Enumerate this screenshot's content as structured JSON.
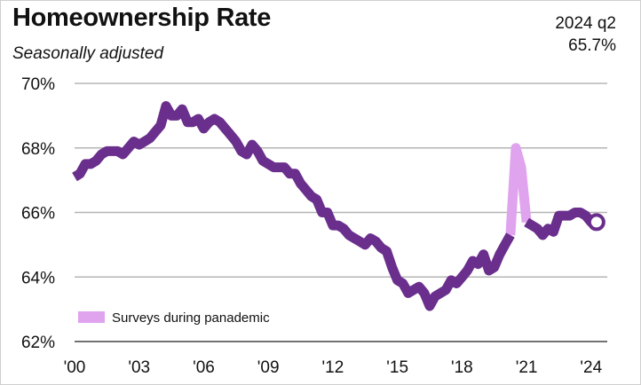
{
  "header": {
    "title": "Homeownership Rate",
    "subtitle": "Seasonally adjusted",
    "latest_period": "2024 q2",
    "latest_value": "65.7%"
  },
  "colors": {
    "main_series": "#6a2e8c",
    "pandemic_series": "#e0a3ee",
    "grid": "#b5b5b5"
  },
  "chart_data": {
    "type": "line",
    "title": "Homeownership Rate",
    "subtitle": "Seasonally adjusted",
    "xlabel": "",
    "ylabel": "",
    "xlim": [
      2000.0,
      2024.75
    ],
    "ylim": [
      62,
      70
    ],
    "x_ticks": [
      {
        "value": 2000,
        "label": "'00"
      },
      {
        "value": 2003,
        "label": "'03"
      },
      {
        "value": 2006,
        "label": "'06"
      },
      {
        "value": 2009,
        "label": "'09"
      },
      {
        "value": 2012,
        "label": "'12"
      },
      {
        "value": 2015,
        "label": "'15"
      },
      {
        "value": 2018,
        "label": "'18"
      },
      {
        "value": 2021,
        "label": "'21"
      },
      {
        "value": 2024,
        "label": "'24"
      }
    ],
    "y_ticks": [
      {
        "value": 70,
        "label": "70%"
      },
      {
        "value": 68,
        "label": "68%"
      },
      {
        "value": 66,
        "label": "66%"
      },
      {
        "value": 64,
        "label": "64%"
      },
      {
        "value": 62,
        "label": "62%"
      }
    ],
    "grid": true,
    "legend": {
      "position": "bottom-left",
      "label": "Surveys during panademic"
    },
    "series": [
      {
        "name": "Homeownership rate",
        "role": "main-before",
        "points": [
          [
            2000.0,
            67.1
          ],
          [
            2000.25,
            67.2
          ],
          [
            2000.5,
            67.5
          ],
          [
            2000.75,
            67.5
          ],
          [
            2001.0,
            67.6
          ],
          [
            2001.25,
            67.8
          ],
          [
            2001.5,
            67.9
          ],
          [
            2001.75,
            67.9
          ],
          [
            2002.0,
            67.9
          ],
          [
            2002.25,
            67.8
          ],
          [
            2002.5,
            68.0
          ],
          [
            2002.75,
            68.2
          ],
          [
            2003.0,
            68.1
          ],
          [
            2003.25,
            68.2
          ],
          [
            2003.5,
            68.3
          ],
          [
            2003.75,
            68.5
          ],
          [
            2004.0,
            68.7
          ],
          [
            2004.25,
            69.3
          ],
          [
            2004.5,
            69.0
          ],
          [
            2004.75,
            69.0
          ],
          [
            2005.0,
            69.2
          ],
          [
            2005.25,
            68.8
          ],
          [
            2005.5,
            68.8
          ],
          [
            2005.75,
            68.9
          ],
          [
            2006.0,
            68.6
          ],
          [
            2006.25,
            68.8
          ],
          [
            2006.5,
            68.9
          ],
          [
            2006.75,
            68.8
          ],
          [
            2007.0,
            68.6
          ],
          [
            2007.25,
            68.4
          ],
          [
            2007.5,
            68.2
          ],
          [
            2007.75,
            67.9
          ],
          [
            2008.0,
            67.8
          ],
          [
            2008.25,
            68.1
          ],
          [
            2008.5,
            67.9
          ],
          [
            2008.75,
            67.6
          ],
          [
            2009.0,
            67.5
          ],
          [
            2009.25,
            67.4
          ],
          [
            2009.5,
            67.4
          ],
          [
            2009.75,
            67.4
          ],
          [
            2010.0,
            67.2
          ],
          [
            2010.25,
            67.2
          ],
          [
            2010.5,
            66.9
          ],
          [
            2010.75,
            66.7
          ],
          [
            2011.0,
            66.5
          ],
          [
            2011.25,
            66.4
          ],
          [
            2011.5,
            66.0
          ],
          [
            2011.75,
            66.0
          ],
          [
            2012.0,
            65.6
          ],
          [
            2012.25,
            65.6
          ],
          [
            2012.5,
            65.5
          ],
          [
            2012.75,
            65.3
          ],
          [
            2013.0,
            65.2
          ],
          [
            2013.25,
            65.1
          ],
          [
            2013.5,
            65.0
          ],
          [
            2013.75,
            65.2
          ],
          [
            2014.0,
            65.1
          ],
          [
            2014.25,
            64.9
          ],
          [
            2014.5,
            64.8
          ],
          [
            2014.75,
            64.3
          ],
          [
            2015.0,
            63.9
          ],
          [
            2015.25,
            63.8
          ],
          [
            2015.5,
            63.5
          ],
          [
            2015.75,
            63.6
          ],
          [
            2016.0,
            63.7
          ],
          [
            2016.25,
            63.5
          ],
          [
            2016.5,
            63.1
          ],
          [
            2016.75,
            63.4
          ],
          [
            2017.0,
            63.5
          ],
          [
            2017.25,
            63.6
          ],
          [
            2017.5,
            63.9
          ],
          [
            2017.75,
            63.8
          ],
          [
            2018.0,
            64.0
          ],
          [
            2018.25,
            64.2
          ],
          [
            2018.5,
            64.5
          ],
          [
            2018.75,
            64.4
          ],
          [
            2019.0,
            64.7
          ],
          [
            2019.25,
            64.2
          ],
          [
            2019.5,
            64.3
          ],
          [
            2019.75,
            64.7
          ],
          [
            2020.0,
            65.0
          ],
          [
            2020.25,
            65.3
          ]
        ]
      },
      {
        "name": "Surveys during panademic",
        "role": "pandemic",
        "points": [
          [
            2020.25,
            65.3
          ],
          [
            2020.5,
            68.0
          ],
          [
            2020.75,
            67.4
          ],
          [
            2021.0,
            65.7
          ]
        ]
      },
      {
        "name": "Homeownership rate",
        "role": "main-after",
        "points": [
          [
            2021.0,
            65.7
          ],
          [
            2021.25,
            65.6
          ],
          [
            2021.5,
            65.5
          ],
          [
            2021.75,
            65.3
          ],
          [
            2022.0,
            65.5
          ],
          [
            2022.25,
            65.4
          ],
          [
            2022.5,
            65.9
          ],
          [
            2022.75,
            65.9
          ],
          [
            2023.0,
            65.9
          ],
          [
            2023.25,
            66.0
          ],
          [
            2023.5,
            66.0
          ],
          [
            2023.75,
            65.9
          ],
          [
            2024.0,
            65.7
          ],
          [
            2024.25,
            65.7
          ]
        ]
      }
    ],
    "latest_point": {
      "x": 2024.25,
      "y": 65.7
    }
  }
}
